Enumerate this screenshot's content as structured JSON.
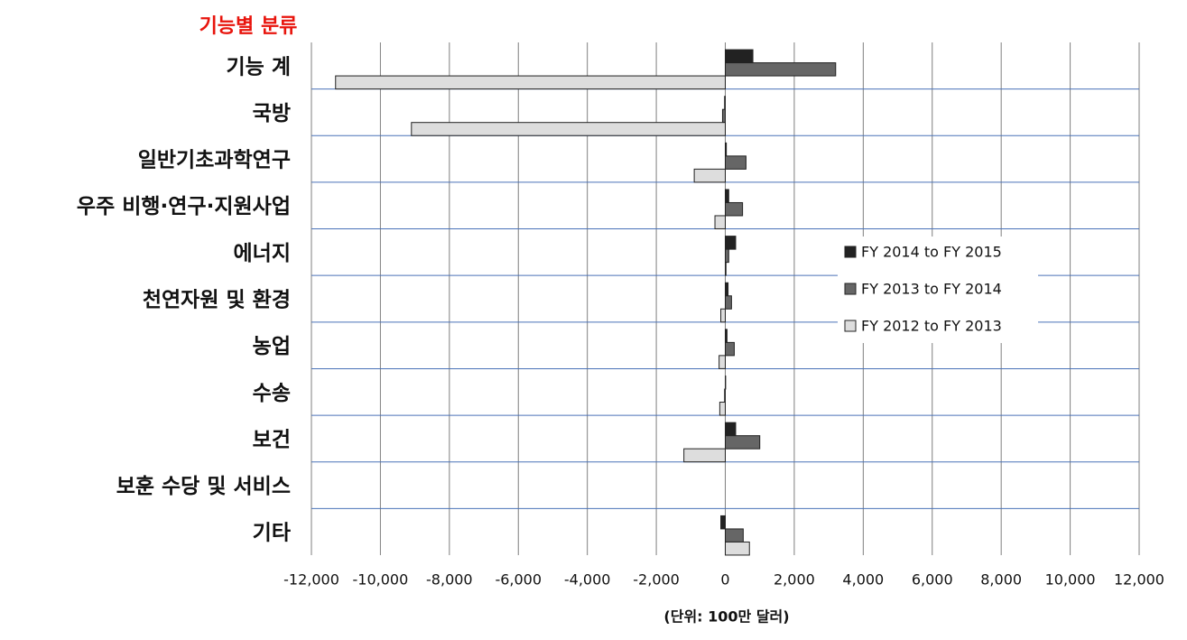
{
  "chart_data": {
    "type": "bar",
    "orientation": "horizontal",
    "title": "기능별 분류",
    "x_label": "(단위: 100만 달러)",
    "categories": [
      "기능 계",
      "국방",
      "일반기초과학연구",
      "우주 비행·연구·지원사업",
      "에너지",
      "천연자원 및 환경",
      "농업",
      "수송",
      "보건",
      "보훈 수당 및 서비스",
      "기타"
    ],
    "series": [
      {
        "name": "FY 2014 to FY 2015",
        "color": "#222222",
        "values": [
          800,
          -20,
          30,
          100,
          300,
          80,
          50,
          10,
          300,
          0,
          -130
        ]
      },
      {
        "name": "FY 2013 to FY 2014",
        "color": "#666666",
        "values": [
          3200,
          -80,
          600,
          500,
          100,
          180,
          260,
          -20,
          1000,
          0,
          520
        ]
      },
      {
        "name": "FY 2012 to FY 2013",
        "color": "#dddddd",
        "values": [
          -11300,
          -9100,
          -900,
          -300,
          20,
          -130,
          -180,
          -160,
          -1200,
          0,
          700
        ]
      }
    ],
    "xlim": [
      -12000,
      12000
    ],
    "xticks": [
      {
        "value": -12000,
        "label": "-12,000"
      },
      {
        "value": -10000,
        "label": "-10,000"
      },
      {
        "value": -8000,
        "label": "-8,000"
      },
      {
        "value": -6000,
        "label": "-6,000"
      },
      {
        "value": -4000,
        "label": "-4,000"
      },
      {
        "value": -2000,
        "label": "-2,000"
      },
      0,
      {
        "value": 2000,
        "label": "2,000"
      },
      {
        "value": 4000,
        "label": "4,000"
      },
      {
        "value": 6000,
        "label": "6,000"
      },
      {
        "value": 8000,
        "label": "8,000"
      },
      {
        "value": 10000,
        "label": "10,000"
      },
      {
        "value": 12000,
        "label": "12,000"
      }
    ],
    "grid": true,
    "legend": "right"
  }
}
